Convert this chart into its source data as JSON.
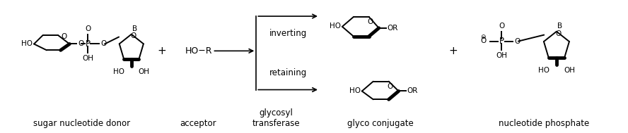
{
  "background_color": "#ffffff",
  "labels": {
    "sugar_nucleotide_donor": "sugar nucleotide donor",
    "acceptor": "acceptor",
    "glycosyl_transferase": "glycosyl\ntransferase",
    "glyco_conjugate": "glyco conjugate",
    "nucleotide_phosphate": "nucleotide phosphate",
    "inverting": "inverting",
    "retaining": "retaining",
    "HO_R": "HO−R"
  },
  "figsize": [
    8.88,
    1.89
  ],
  "dpi": 100
}
